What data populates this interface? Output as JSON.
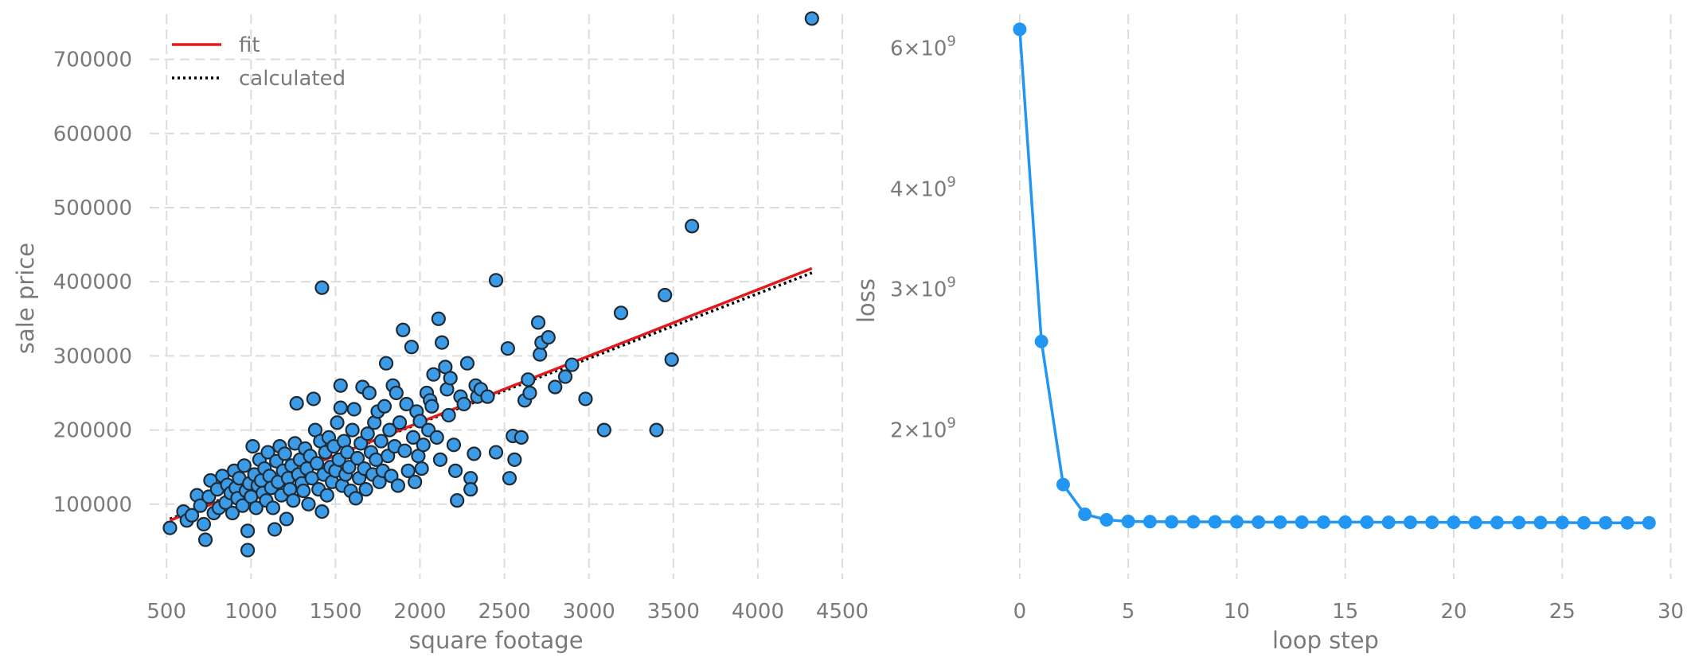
{
  "colors": {
    "point_fill": "#3b9be6",
    "point_edge": "#1f2a33",
    "fit_line": "#e31a1c",
    "calculated_line": "#000000",
    "loss_line": "#2196f3",
    "grid": "#dcdcdc",
    "text": "#7a7a7a"
  },
  "chart_data": [
    {
      "type": "scatter",
      "xlabel": "square footage",
      "ylabel": "sale price",
      "xlim": [
        400,
        4500
      ],
      "ylim": [
        0,
        780000
      ],
      "x_ticks": [
        500,
        1000,
        1500,
        2000,
        2500,
        3000,
        3500,
        4000,
        4500
      ],
      "y_ticks": [
        100000,
        200000,
        300000,
        400000,
        500000,
        600000,
        700000
      ],
      "grid": true,
      "legend_position": "top-left",
      "legend": [
        {
          "label": "fit",
          "style": "solid",
          "color": "#e31a1c"
        },
        {
          "label": "calculated",
          "style": "dotted",
          "color": "#000000"
        }
      ],
      "lines": [
        {
          "name": "fit",
          "x": [
            520,
            4320
          ],
          "y": [
            78000,
            418000
          ]
        },
        {
          "name": "calculated",
          "x": [
            520,
            4320
          ],
          "y": [
            80000,
            412000
          ]
        }
      ],
      "points": [
        [
          520,
          68000
        ],
        [
          600,
          90000
        ],
        [
          620,
          78000
        ],
        [
          650,
          85000
        ],
        [
          680,
          112000
        ],
        [
          700,
          98000
        ],
        [
          720,
          73000
        ],
        [
          730,
          52000
        ],
        [
          750,
          110000
        ],
        [
          760,
          132000
        ],
        [
          780,
          88000
        ],
        [
          800,
          120000
        ],
        [
          810,
          95000
        ],
        [
          830,
          138000
        ],
        [
          850,
          102000
        ],
        [
          860,
          126000
        ],
        [
          880,
          115000
        ],
        [
          890,
          88000
        ],
        [
          900,
          145000
        ],
        [
          910,
          122000
        ],
        [
          920,
          108000
        ],
        [
          930,
          135000
        ],
        [
          950,
          98000
        ],
        [
          960,
          152000
        ],
        [
          970,
          118000
        ],
        [
          980,
          64000
        ],
        [
          980,
          38000
        ],
        [
          990,
          128000
        ],
        [
          1000,
          110000
        ],
        [
          1010,
          178000
        ],
        [
          1020,
          140000
        ],
        [
          1030,
          95000
        ],
        [
          1040,
          125000
        ],
        [
          1050,
          160000
        ],
        [
          1060,
          132000
        ],
        [
          1070,
          115000
        ],
        [
          1080,
          148000
        ],
        [
          1090,
          105000
        ],
        [
          1100,
          170000
        ],
        [
          1110,
          138000
        ],
        [
          1120,
          122000
        ],
        [
          1130,
          95000
        ],
        [
          1140,
          66000
        ],
        [
          1150,
          158000
        ],
        [
          1160,
          130000
        ],
        [
          1170,
          178000
        ],
        [
          1180,
          112000
        ],
        [
          1190,
          145000
        ],
        [
          1200,
          168000
        ],
        [
          1210,
          80000
        ],
        [
          1220,
          135000
        ],
        [
          1230,
          120000
        ],
        [
          1240,
          152000
        ],
        [
          1250,
          105000
        ],
        [
          1260,
          182000
        ],
        [
          1270,
          236000
        ],
        [
          1280,
          140000
        ],
        [
          1290,
          160000
        ],
        [
          1300,
          128000
        ],
        [
          1310,
          118000
        ],
        [
          1320,
          175000
        ],
        [
          1330,
          148000
        ],
        [
          1340,
          100000
        ],
        [
          1350,
          165000
        ],
        [
          1360,
          135000
        ],
        [
          1370,
          242000
        ],
        [
          1380,
          200000
        ],
        [
          1390,
          155000
        ],
        [
          1400,
          120000
        ],
        [
          1410,
          185000
        ],
        [
          1420,
          90000
        ],
        [
          1420,
          392000
        ],
        [
          1430,
          140000
        ],
        [
          1440,
          170000
        ],
        [
          1450,
          112000
        ],
        [
          1460,
          190000
        ],
        [
          1470,
          150000
        ],
        [
          1480,
          130000
        ],
        [
          1490,
          178000
        ],
        [
          1500,
          145000
        ],
        [
          1510,
          210000
        ],
        [
          1520,
          160000
        ],
        [
          1530,
          260000
        ],
        [
          1530,
          230000
        ],
        [
          1540,
          125000
        ],
        [
          1550,
          185000
        ],
        [
          1560,
          140000
        ],
        [
          1570,
          170000
        ],
        [
          1580,
          150000
        ],
        [
          1590,
          118000
        ],
        [
          1600,
          200000
        ],
        [
          1610,
          228000
        ],
        [
          1620,
          108000
        ],
        [
          1630,
          162000
        ],
        [
          1640,
          135000
        ],
        [
          1650,
          182000
        ],
        [
          1660,
          258000
        ],
        [
          1670,
          148000
        ],
        [
          1680,
          120000
        ],
        [
          1690,
          195000
        ],
        [
          1700,
          250000
        ],
        [
          1710,
          170000
        ],
        [
          1720,
          140000
        ],
        [
          1730,
          210000
        ],
        [
          1740,
          160000
        ],
        [
          1750,
          225000
        ],
        [
          1760,
          130000
        ],
        [
          1770,
          185000
        ],
        [
          1780,
          145000
        ],
        [
          1790,
          232000
        ],
        [
          1800,
          290000
        ],
        [
          1810,
          165000
        ],
        [
          1820,
          200000
        ],
        [
          1830,
          138000
        ],
        [
          1840,
          260000
        ],
        [
          1850,
          178000
        ],
        [
          1860,
          250000
        ],
        [
          1870,
          125000
        ],
        [
          1880,
          210000
        ],
        [
          1900,
          335000
        ],
        [
          1910,
          172000
        ],
        [
          1920,
          235000
        ],
        [
          1930,
          145000
        ],
        [
          1950,
          312000
        ],
        [
          1960,
          190000
        ],
        [
          1970,
          130000
        ],
        [
          1980,
          225000
        ],
        [
          1990,
          165000
        ],
        [
          2000,
          212000
        ],
        [
          2010,
          148000
        ],
        [
          2020,
          180000
        ],
        [
          2040,
          250000
        ],
        [
          2050,
          200000
        ],
        [
          2060,
          240000
        ],
        [
          2070,
          232000
        ],
        [
          2080,
          275000
        ],
        [
          2100,
          190000
        ],
        [
          2110,
          350000
        ],
        [
          2120,
          160000
        ],
        [
          2130,
          318000
        ],
        [
          2150,
          285000
        ],
        [
          2160,
          255000
        ],
        [
          2170,
          220000
        ],
        [
          2180,
          270000
        ],
        [
          2200,
          180000
        ],
        [
          2210,
          145000
        ],
        [
          2220,
          105000
        ],
        [
          2240,
          245000
        ],
        [
          2260,
          235000
        ],
        [
          2280,
          290000
        ],
        [
          2300,
          135000
        ],
        [
          2300,
          120000
        ],
        [
          2320,
          168000
        ],
        [
          2330,
          260000
        ],
        [
          2340,
          245000
        ],
        [
          2360,
          255000
        ],
        [
          2400,
          245000
        ],
        [
          2450,
          402000
        ],
        [
          2450,
          170000
        ],
        [
          2520,
          310000
        ],
        [
          2530,
          135000
        ],
        [
          2550,
          192000
        ],
        [
          2560,
          160000
        ],
        [
          2600,
          190000
        ],
        [
          2620,
          240000
        ],
        [
          2640,
          268000
        ],
        [
          2650,
          250000
        ],
        [
          2700,
          345000
        ],
        [
          2710,
          302000
        ],
        [
          2720,
          318000
        ],
        [
          2760,
          325000
        ],
        [
          2800,
          258000
        ],
        [
          2860,
          272000
        ],
        [
          2900,
          288000
        ],
        [
          2980,
          242000
        ],
        [
          3090,
          200000
        ],
        [
          3190,
          358000
        ],
        [
          3400,
          200000
        ],
        [
          3450,
          382000
        ],
        [
          3490,
          295000
        ],
        [
          3610,
          475000
        ],
        [
          4320,
          755000
        ]
      ]
    },
    {
      "type": "line",
      "xlabel": "loop step",
      "ylabel": "loss",
      "y_scale": "log",
      "xlim": [
        -1.5,
        30.2
      ],
      "ylim": [
        1300000000,
        6700000000
      ],
      "x_ticks": [
        0,
        5,
        10,
        15,
        20,
        25,
        30
      ],
      "y_ticks": [
        {
          "value": 2000000000,
          "mantissa": "2",
          "base": "×10",
          "exp": "9"
        },
        {
          "value": 3000000000,
          "mantissa": "3",
          "base": "×10",
          "exp": "9"
        },
        {
          "value": 4000000000,
          "mantissa": "4",
          "base": "×10",
          "exp": "9"
        },
        {
          "value": 6000000000,
          "mantissa": "6",
          "base": "×10",
          "exp": "9"
        }
      ],
      "grid": true,
      "series": [
        {
          "x": [
            0,
            1,
            2,
            3,
            4,
            5,
            6,
            7,
            8,
            9,
            10,
            11,
            12,
            13,
            14,
            15,
            16,
            17,
            18,
            19,
            20,
            21,
            22,
            23,
            24,
            25,
            26,
            27,
            28,
            29
          ],
          "y": [
            6330000000,
            2580000000,
            1710000000,
            1570000000,
            1545000000,
            1538000000,
            1537000000,
            1536000000,
            1536000000,
            1536000000,
            1536000000,
            1535000000,
            1535000000,
            1535000000,
            1535000000,
            1535000000,
            1535000000,
            1534000000,
            1534000000,
            1534000000,
            1534000000,
            1533000000,
            1533000000,
            1533000000,
            1533000000,
            1533000000,
            1532000000,
            1532000000,
            1532000000,
            1532000000
          ]
        }
      ]
    }
  ]
}
